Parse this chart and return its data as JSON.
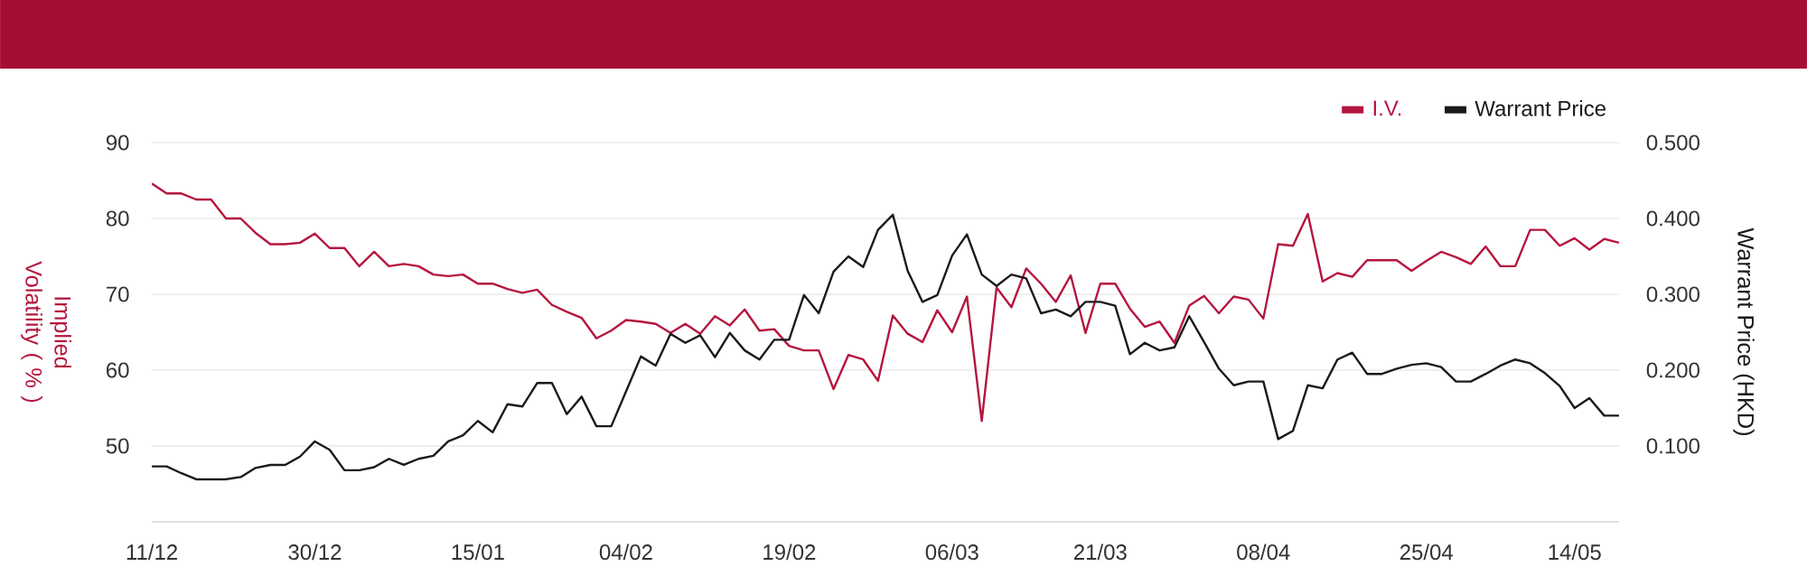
{
  "chart_data": {
    "type": "line",
    "categories": [
      "11/12",
      null,
      null,
      null,
      null,
      null,
      null,
      null,
      null,
      null,
      null,
      "30/12",
      null,
      null,
      null,
      null,
      null,
      null,
      null,
      null,
      null,
      null,
      "15/01",
      null,
      null,
      null,
      null,
      null,
      null,
      null,
      null,
      null,
      "04/02",
      null,
      null,
      null,
      null,
      null,
      null,
      null,
      null,
      null,
      null,
      "19/02",
      null,
      null,
      null,
      null,
      null,
      null,
      null,
      null,
      null,
      null,
      "06/03",
      null,
      null,
      null,
      null,
      null,
      null,
      null,
      null,
      null,
      "21/03",
      null,
      null,
      null,
      null,
      null,
      null,
      null,
      null,
      null,
      null,
      "08/04",
      null,
      null,
      null,
      null,
      null,
      null,
      null,
      null,
      null,
      null,
      "25/04",
      null,
      null,
      null,
      null,
      null,
      null,
      null,
      null,
      null,
      "14/05",
      null,
      null,
      null
    ],
    "series": [
      {
        "name": "I.V.",
        "color": "#b5163e",
        "values": [
          84.6,
          83.3,
          83.3,
          82.5,
          82.5,
          80.0,
          80.0,
          78.1,
          76.6,
          76.6,
          76.8,
          78.0,
          76.1,
          76.1,
          73.7,
          75.6,
          73.7,
          74.0,
          73.7,
          72.6,
          72.4,
          72.6,
          71.4,
          71.4,
          70.7,
          70.2,
          70.6,
          68.6,
          67.7,
          66.9,
          64.2,
          65.2,
          66.6,
          66.4,
          66.1,
          64.9,
          66.1,
          64.8,
          67.1,
          65.9,
          68.0,
          65.2,
          65.4,
          63.2,
          62.6,
          62.6,
          57.5,
          62.0,
          61.4,
          58.6,
          67.2,
          64.8,
          63.7,
          67.9,
          65.0,
          69.7,
          53.3,
          70.9,
          68.3,
          73.4,
          71.4,
          69.0,
          72.5,
          64.9,
          71.4,
          71.4,
          68.1,
          65.7,
          66.4,
          63.6,
          68.5,
          69.8,
          67.5,
          69.7,
          69.3,
          66.8,
          76.6,
          76.4,
          80.6,
          71.7,
          72.8,
          72.3,
          74.5,
          74.5,
          74.5,
          73.1,
          74.4,
          75.6,
          74.9,
          74.0,
          76.3,
          73.7,
          73.7,
          78.5,
          78.5,
          76.4,
          77.4,
          75.9,
          77.3,
          76.8
        ]
      },
      {
        "name": "Warrant Price",
        "color": "#1a1a1a",
        "axis": "y2",
        "values": [
          0.073,
          0.073,
          0.064,
          0.056,
          0.056,
          0.056,
          0.059,
          0.071,
          0.075,
          0.075,
          0.086,
          0.106,
          0.095,
          0.068,
          0.068,
          0.072,
          0.083,
          0.075,
          0.083,
          0.087,
          0.106,
          0.114,
          0.133,
          0.118,
          0.155,
          0.152,
          0.183,
          0.183,
          0.142,
          0.165,
          0.126,
          0.126,
          0.172,
          0.218,
          0.206,
          0.248,
          0.236,
          0.246,
          0.217,
          0.249,
          0.226,
          0.214,
          0.24,
          0.24,
          0.299,
          0.275,
          0.33,
          0.35,
          0.336,
          0.385,
          0.405,
          0.331,
          0.29,
          0.299,
          0.351,
          0.379,
          0.326,
          0.311,
          0.326,
          0.321,
          0.275,
          0.28,
          0.271,
          0.29,
          0.29,
          0.285,
          0.221,
          0.236,
          0.226,
          0.23,
          0.271,
          0.237,
          0.202,
          0.18,
          0.185,
          0.185,
          0.109,
          0.12,
          0.18,
          0.176,
          0.214,
          0.223,
          0.195,
          0.195,
          0.202,
          0.207,
          0.209,
          0.204,
          0.185,
          0.185,
          0.195,
          0.206,
          0.214,
          0.209,
          0.196,
          0.179,
          0.15,
          0.163,
          0.14,
          0.14
        ]
      }
    ],
    "ylabel": "Implied Volatility ( % )",
    "y2label": "Warrant Price (HKD)",
    "ylim": [
      40,
      90
    ],
    "yticks": [
      50,
      60,
      70,
      80,
      90
    ],
    "y2lim": [
      0,
      0.5
    ],
    "y2ticks": [
      {
        "value": 0.1,
        "label": "0.100"
      },
      {
        "value": 0.2,
        "label": "0.200"
      },
      {
        "value": 0.3,
        "label": "0.300"
      },
      {
        "value": 0.4,
        "label": "0.400"
      },
      {
        "value": 0.5,
        "label": "0.500"
      }
    ],
    "grid": "y",
    "legend": "top right"
  }
}
